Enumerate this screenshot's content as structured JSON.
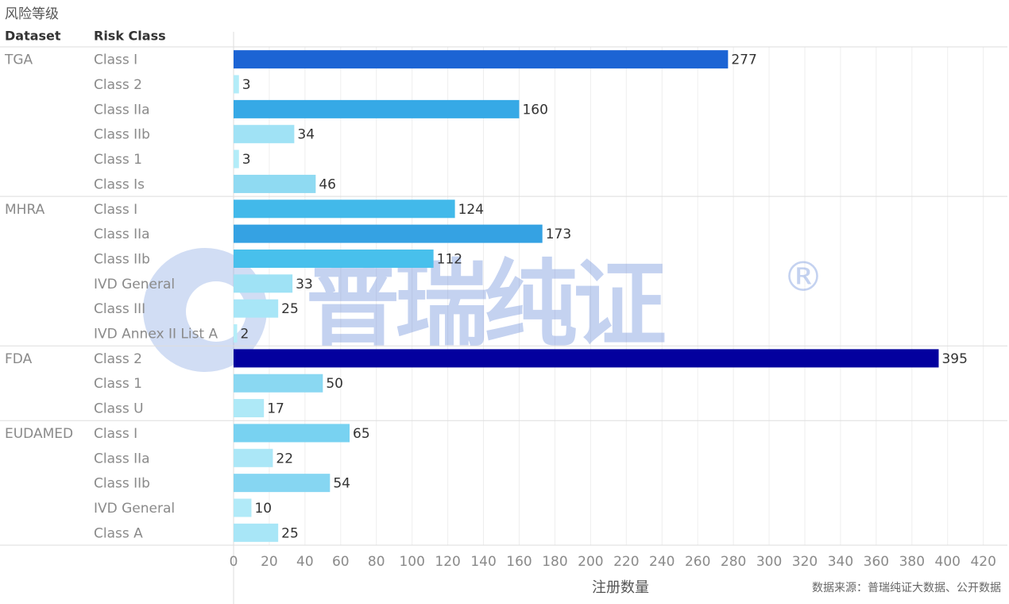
{
  "chart_data": {
    "type": "bar",
    "title": "风险等级",
    "column_headers": [
      "Dataset",
      "Risk Class"
    ],
    "x_label": "注册数量",
    "source": "数据来源：普瑞纯证大数据、公开数据",
    "watermark": "普瑞纯证",
    "watermark_mark": "®",
    "groups": [
      {
        "name": "TGA",
        "categories": [
          "Class I",
          "Class 2",
          "Class IIa",
          "Class IIb",
          "Class 1",
          "Class Is"
        ],
        "values": [
          277,
          3,
          160,
          34,
          3,
          46
        ],
        "colors": [
          "#1c64d4",
          "#b3ecf8",
          "#36a9e6",
          "#a0e2f5",
          "#b3ecf8",
          "#8fdaf2"
        ]
      },
      {
        "name": "MHRA",
        "categories": [
          "Class I",
          "Class IIa",
          "Class IIb",
          "IVD General",
          "Class III",
          "IVD Annex II List A"
        ],
        "values": [
          124,
          173,
          112,
          33,
          25,
          2
        ],
        "colors": [
          "#42b9ea",
          "#35a2e3",
          "#48c0ec",
          "#9fe2f5",
          "#a8e6f7",
          "#b5edf8"
        ]
      },
      {
        "name": "FDA",
        "categories": [
          "Class 2",
          "Class 1",
          "Class U"
        ],
        "values": [
          395,
          50,
          17
        ],
        "colors": [
          "#03009e",
          "#8ad8f2",
          "#aee9f7"
        ]
      },
      {
        "name": "EUDAMED",
        "categories": [
          "Class I",
          "Class IIa",
          "Class IIb",
          "IVD General",
          "Class A"
        ],
        "values": [
          65,
          22,
          54,
          10,
          25
        ],
        "colors": [
          "#78d2f1",
          "#abe7f7",
          "#86d6f2",
          "#b1eaf8",
          "#a8e6f7"
        ]
      }
    ],
    "xlim": [
      0,
      433.5
    ],
    "xticks": [
      0,
      20,
      40,
      60,
      80,
      100,
      120,
      140,
      160,
      180,
      200,
      220,
      240,
      260,
      280,
      300,
      320,
      340,
      360,
      380,
      400,
      420
    ],
    "grid": true
  }
}
